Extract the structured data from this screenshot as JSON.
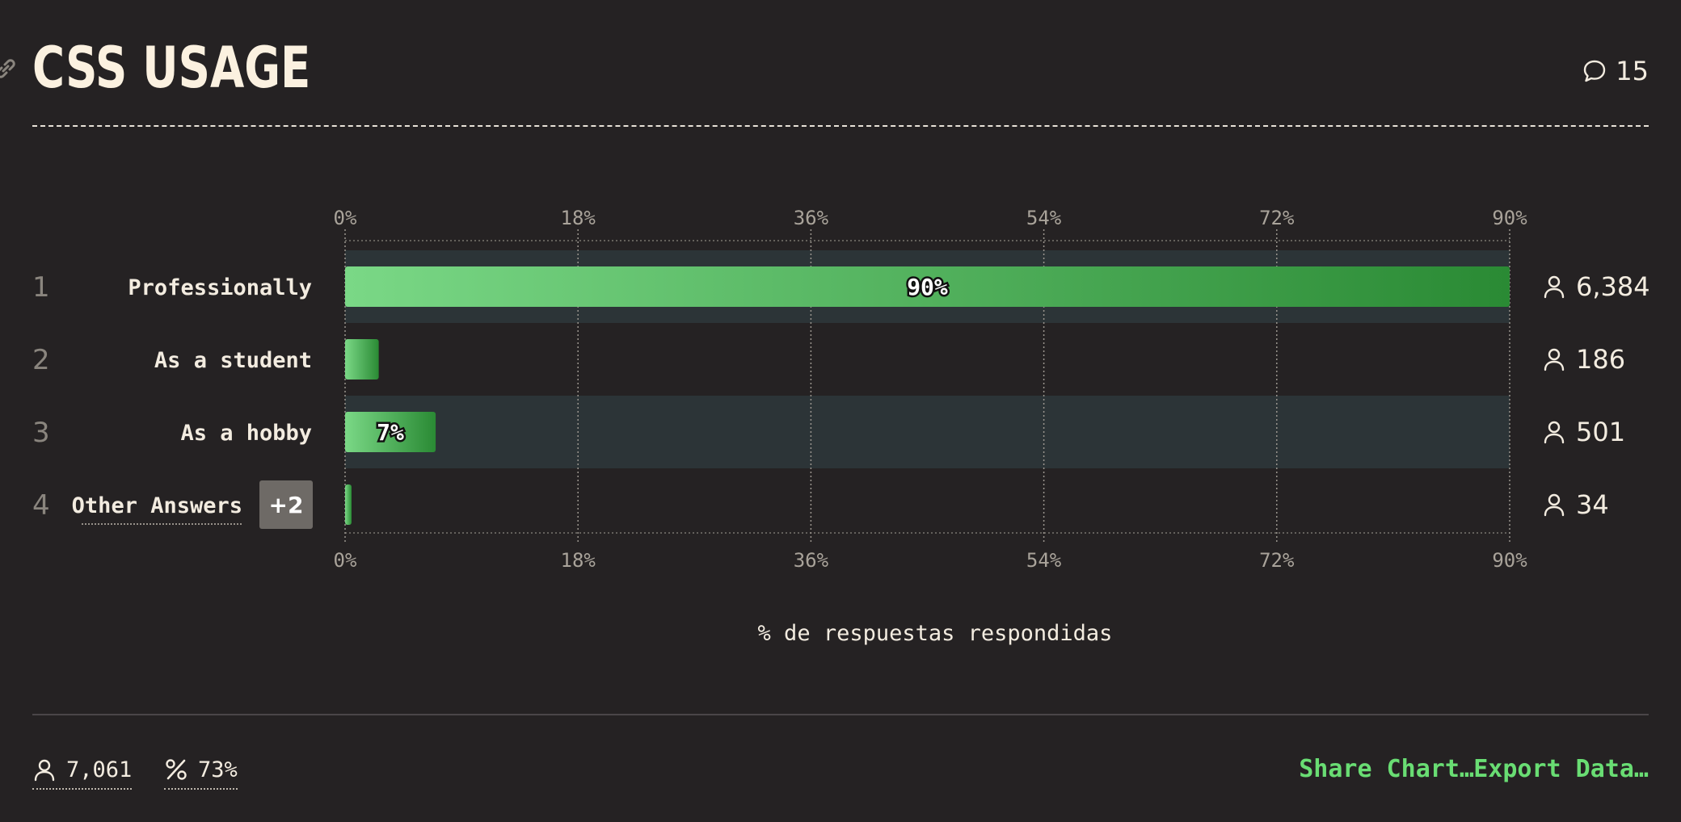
{
  "header": {
    "title": "CSS USAGE",
    "comment_count": "15"
  },
  "footer": {
    "total_respondents": "7,061",
    "response_rate": "73%",
    "share_label": "Share Chart…",
    "export_label": "Export Data…"
  },
  "colors": {
    "background": "#252223",
    "text": "#f3ece0",
    "bar_start": "#7ad886",
    "bar_end": "#2a8a34",
    "row_highlight": "#2c3437",
    "link_green": "#69dd73"
  },
  "icons": [
    "link-icon",
    "comment-bubble-icon",
    "user-icon",
    "percent-icon"
  ],
  "chart_data": {
    "type": "bar",
    "orientation": "horizontal",
    "xlabel": "% de respuestas respondidas",
    "xlim": [
      0,
      90
    ],
    "xticks": [
      "0%",
      "18%",
      "36%",
      "54%",
      "72%",
      "90%"
    ],
    "grid": true,
    "categories": [
      {
        "rank": "1",
        "label": "Professionally",
        "value": 90,
        "value_label": "90%",
        "count": "6,384",
        "highlight": true
      },
      {
        "rank": "2",
        "label": "As a student",
        "value": 2.6,
        "value_label": "",
        "count": "186",
        "highlight": false
      },
      {
        "rank": "3",
        "label": "As a hobby",
        "value": 7,
        "value_label": "7%",
        "count": "501",
        "highlight": true
      },
      {
        "rank": "4",
        "label": "Other Answers",
        "badge": "+2",
        "value": 0.5,
        "value_label": "",
        "count": "34",
        "highlight": false
      }
    ]
  }
}
